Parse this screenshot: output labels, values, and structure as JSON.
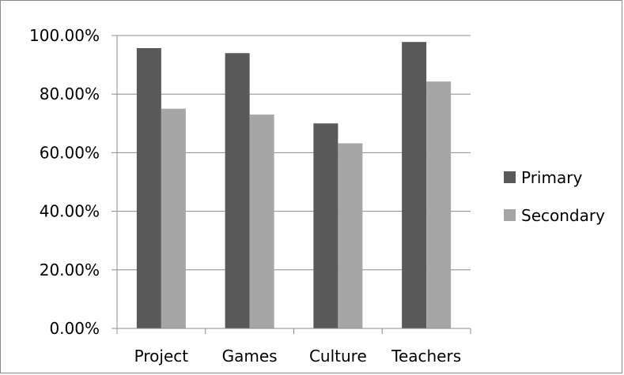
{
  "chart_data": {
    "type": "bar",
    "categories": [
      "Project",
      "Games",
      "Culture",
      "Teachers"
    ],
    "series": [
      {
        "name": "Primary",
        "values": [
          95.7,
          94.0,
          70.0,
          97.8
        ],
        "color": "#595959"
      },
      {
        "name": "Secondary",
        "values": [
          75.0,
          73.0,
          63.2,
          84.3
        ],
        "color": "#a6a6a6"
      }
    ],
    "ylim": [
      0,
      100
    ],
    "yticks": [
      0,
      20,
      40,
      60,
      80,
      100
    ],
    "ytick_labels": [
      "0.00%",
      "20.00%",
      "40.00%",
      "60.00%",
      "80.00%",
      "100.00%"
    ],
    "grid": true,
    "legend_position": "right",
    "title": "",
    "xlabel": "",
    "ylabel": ""
  }
}
